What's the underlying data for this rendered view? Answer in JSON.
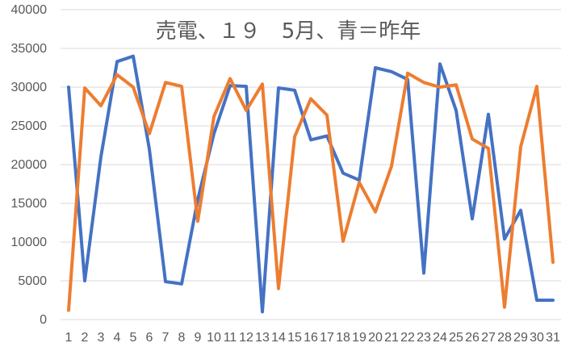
{
  "chart_data": {
    "type": "line",
    "title": "売電、１９　5月、青＝昨年",
    "xlabel": "",
    "ylabel": "",
    "ylim": [
      0,
      40000
    ],
    "yticks": [
      0,
      5000,
      10000,
      15000,
      20000,
      25000,
      30000,
      35000,
      40000
    ],
    "categories": [
      "1",
      "2",
      "3",
      "4",
      "5",
      "6",
      "7",
      "8",
      "9",
      "10",
      "11",
      "12",
      "13",
      "14",
      "15",
      "16",
      "17",
      "18",
      "19",
      "20",
      "21",
      "22",
      "23",
      "24",
      "25",
      "26",
      "27",
      "28",
      "29",
      "30",
      "31"
    ],
    "grid": true,
    "legend": "none",
    "series": [
      {
        "color": "#4472c4",
        "values": [
          30000,
          5000,
          21000,
          33300,
          34000,
          22000,
          4900,
          4600,
          15500,
          24000,
          30200,
          30100,
          1000,
          29900,
          29600,
          23200,
          23700,
          18900,
          18000,
          32500,
          32000,
          31000,
          6000,
          33000,
          27000,
          13000,
          26500,
          10400,
          14100,
          2500,
          2500
        ]
      },
      {
        "color": "#ed7d31",
        "values": [
          1200,
          29900,
          27600,
          31600,
          30000,
          24000,
          30600,
          30100,
          12700,
          26200,
          31100,
          27000,
          30400,
          4000,
          23600,
          28500,
          26400,
          10100,
          17700,
          13900,
          19800,
          31800,
          30600,
          30000,
          30300,
          23300,
          22100,
          1600,
          22300,
          30100,
          7400
        ]
      }
    ]
  }
}
